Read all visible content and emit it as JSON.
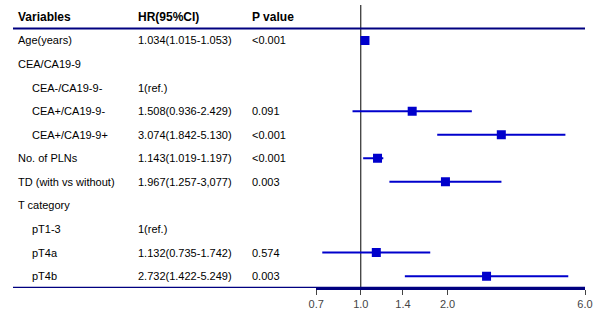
{
  "chart_data": {
    "type": "forest",
    "columns": [
      "Variables",
      "HR(95%CI)",
      "P value"
    ],
    "categories": [
      "Age(years)",
      "CEA/CA19-9",
      "CEA-/CA19-9-",
      "CEA+/CA19-9-",
      "CEA+/CA19-9+",
      "No. of PLNs",
      "TD (with vs without)",
      "T category",
      "pT1-3",
      "pT4a",
      "pT4b"
    ],
    "indent": [
      0,
      0,
      1,
      1,
      1,
      0,
      0,
      0,
      1,
      1,
      1
    ],
    "values": [
      1.034,
      null,
      null,
      1.508,
      3.074,
      1.143,
      1.967,
      null,
      null,
      1.132,
      2.732
    ],
    "lo": [
      1.015,
      null,
      null,
      0.936,
      1.842,
      1.019,
      1.257,
      null,
      null,
      0.735,
      1.422
    ],
    "hi": [
      1.053,
      null,
      null,
      2.429,
      5.13,
      1.197,
      3.077,
      null,
      null,
      1.742,
      5.249
    ],
    "hr_labels": [
      "1.034(1.015-1.053)",
      null,
      "1(ref.)",
      "1.508(0.936-2.429)",
      "3.074(1.842-5.130)",
      "1.143(1.019-1.197)",
      "1.967(1.257-3,077)",
      null,
      "1(ref.)",
      "1.132(0.735-1.742)",
      "2.732(1.422-5.249)"
    ],
    "p_labels": [
      "<0.001",
      null,
      null,
      "0.091",
      "<0.001",
      "<0.001",
      "0.003",
      null,
      null,
      "0.574",
      "0.003"
    ],
    "ref_line": 1.0,
    "xlim": [
      0.7,
      6.0
    ],
    "xticks": [
      0.7,
      {
        "value": 1.0,
        "label": "1.0"
      },
      1.4,
      {
        "value": 2.0,
        "label": "2.0"
      },
      {
        "value": 6.0,
        "label": "6.0"
      }
    ],
    "log": "x",
    "grid": false,
    "tick_labels": "x",
    "marker": "square",
    "color": "#0000CC"
  }
}
